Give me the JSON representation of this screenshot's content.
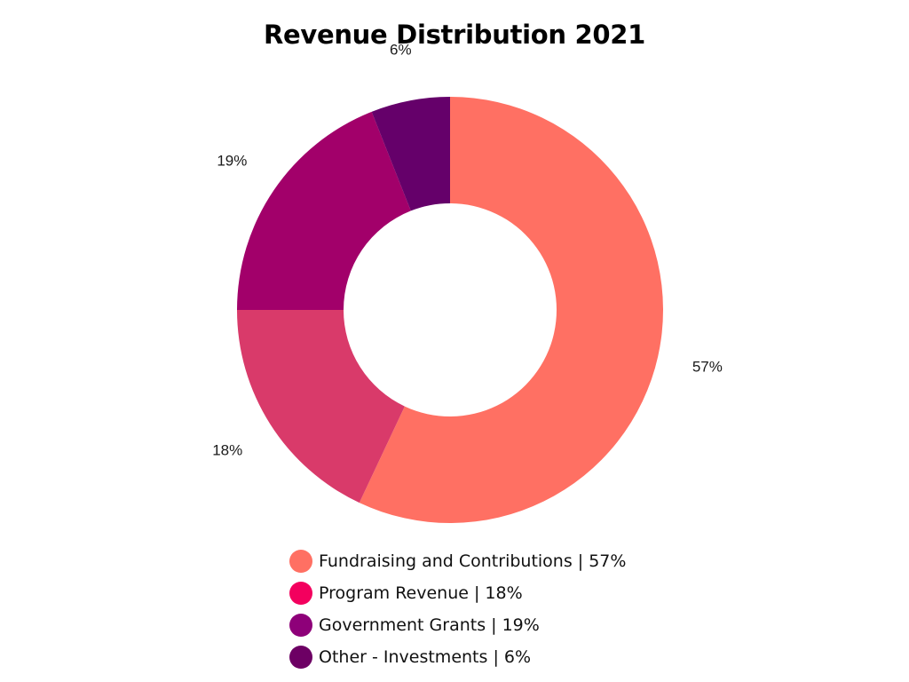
{
  "chart_data": {
    "type": "pie",
    "title": "Revenue Distribution 2021",
    "donut": true,
    "slices": [
      {
        "name": "Fundraising and Contributions",
        "value": 57,
        "label": "57%",
        "legend": "Fundraising and Contributions | 57%",
        "slice_color": "#ff7063",
        "legend_color": "#ff7063"
      },
      {
        "name": "Program Revenue",
        "value": 18,
        "label": "18%",
        "legend": "Program Revenue | 18%",
        "slice_color": "#d93a6a",
        "legend_color": "#f3005e"
      },
      {
        "name": "Government Grants",
        "value": 19,
        "label": "19%",
        "legend": "Government Grants | 19%",
        "slice_color": "#a2006a",
        "legend_color": "#8e0079"
      },
      {
        "name": "Other - Investments",
        "value": 6,
        "label": "6%",
        "legend": "Other - Investments | 6%",
        "slice_color": "#65006a",
        "legend_color": "#6d0064"
      }
    ],
    "legend_position": "bottom"
  }
}
